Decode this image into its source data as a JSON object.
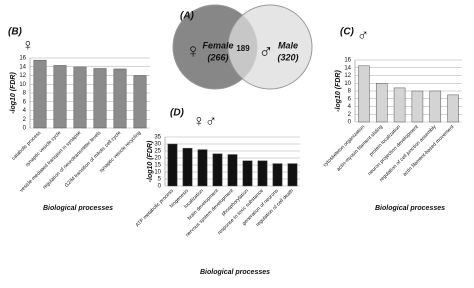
{
  "chart_data": [
    {
      "type": "venn",
      "panel": "(A)",
      "categories": [
        "Female",
        "Male"
      ],
      "values": [
        266,
        320
      ],
      "value_labels": [
        "(266)",
        "(320)"
      ],
      "intersection": 189,
      "symbols": [
        "♀",
        "♂"
      ],
      "colors": [
        "#7a7a7a",
        "#dcdcdc"
      ]
    },
    {
      "type": "bar",
      "panel": "(B)",
      "symbol": "♀",
      "ylabel": "-log10 (FDR)",
      "xlabel": "Biological processes",
      "categories": [
        "catabolic process",
        "synaptic vesicle cycle",
        "vesicle-mediated transport in synapse",
        "regulation of neurotransmitter levels",
        "G2/M transition of mitotic cell cycle",
        "synaptic vesicle recycling"
      ],
      "values": [
        15.5,
        14.3,
        14,
        13.6,
        13.5,
        12
      ],
      "color": "#8c8c8c",
      "ylim": [
        0,
        16
      ],
      "yticks": [
        0,
        2,
        4,
        6,
        8,
        10,
        12,
        14,
        16
      ],
      "grid": true
    },
    {
      "type": "bar",
      "panel": "(C)",
      "symbol": "♂",
      "ylabel": "-log10 (FDR)",
      "xlabel": "Biological processes",
      "categories": [
        "cytoskeleton organization",
        "actin-myosin filament sliding",
        "protein localization",
        "neuron projection development",
        "regulation of cell junction assembly",
        "actin filament-based movement"
      ],
      "values": [
        14.5,
        10,
        8.8,
        8,
        8,
        7
      ],
      "color": "#d4d4d4",
      "ylim": [
        0,
        16
      ],
      "yticks": [
        0,
        2,
        4,
        6,
        8,
        10,
        12,
        14,
        16
      ],
      "grid": true
    },
    {
      "type": "bar",
      "panel": "(D)",
      "symbol": "♀♂",
      "ylabel": "-log10 (FDR)",
      "xlabel": "Biological processes",
      "categories": [
        "ATP metabolic process",
        "biogenesis",
        "localization",
        "brain development",
        "nervous system development",
        "phosphorylation",
        "response to toxic substance",
        "generation of neurons",
        "regulation of cell death"
      ],
      "values": [
        30,
        27,
        26,
        23,
        22.5,
        18,
        18,
        16,
        16
      ],
      "color": "#111111",
      "ylim": [
        0,
        35
      ],
      "yticks": [
        0,
        5,
        10,
        15,
        20,
        25,
        30,
        35
      ],
      "grid": true
    }
  ]
}
